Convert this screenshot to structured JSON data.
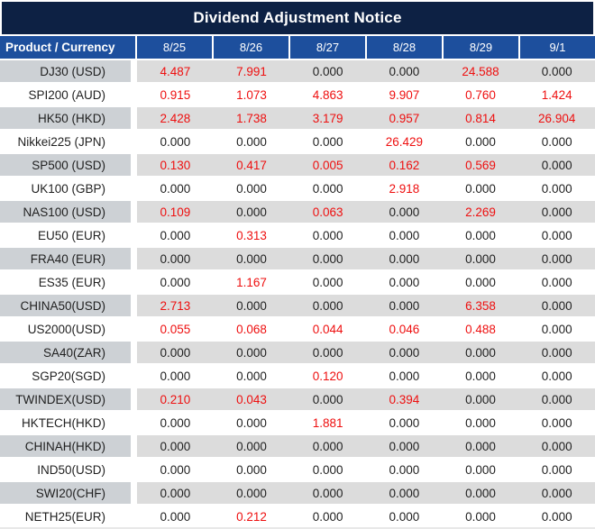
{
  "title": "Dividend Adjustment Notice",
  "chart_data": {
    "type": "table",
    "title": "Dividend Adjustment Notice",
    "columns": [
      "Product / Currency",
      "8/25",
      "8/26",
      "8/27",
      "8/28",
      "8/29",
      "9/1"
    ],
    "rows": [
      {
        "product": "DJ30 (USD)",
        "values": [
          "4.487",
          "7.991",
          "0.000",
          "0.000",
          "24.588",
          "0.000"
        ]
      },
      {
        "product": "SPI200 (AUD)",
        "values": [
          "0.915",
          "1.073",
          "4.863",
          "9.907",
          "0.760",
          "1.424"
        ]
      },
      {
        "product": "HK50 (HKD)",
        "values": [
          "2.428",
          "1.738",
          "3.179",
          "0.957",
          "0.814",
          "26.904"
        ]
      },
      {
        "product": "Nikkei225 (JPN)",
        "values": [
          "0.000",
          "0.000",
          "0.000",
          "26.429",
          "0.000",
          "0.000"
        ]
      },
      {
        "product": "SP500 (USD)",
        "values": [
          "0.130",
          "0.417",
          "0.005",
          "0.162",
          "0.569",
          "0.000"
        ]
      },
      {
        "product": "UK100 (GBP)",
        "values": [
          "0.000",
          "0.000",
          "0.000",
          "2.918",
          "0.000",
          "0.000"
        ]
      },
      {
        "product": "NAS100 (USD)",
        "values": [
          "0.109",
          "0.000",
          "0.063",
          "0.000",
          "2.269",
          "0.000"
        ]
      },
      {
        "product": "EU50 (EUR)",
        "values": [
          "0.000",
          "0.313",
          "0.000",
          "0.000",
          "0.000",
          "0.000"
        ]
      },
      {
        "product": "FRA40 (EUR)",
        "values": [
          "0.000",
          "0.000",
          "0.000",
          "0.000",
          "0.000",
          "0.000"
        ]
      },
      {
        "product": "ES35 (EUR)",
        "values": [
          "0.000",
          "1.167",
          "0.000",
          "0.000",
          "0.000",
          "0.000"
        ]
      },
      {
        "product": "CHINA50(USD)",
        "values": [
          "2.713",
          "0.000",
          "0.000",
          "0.000",
          "6.358",
          "0.000"
        ]
      },
      {
        "product": "US2000(USD)",
        "values": [
          "0.055",
          "0.068",
          "0.044",
          "0.046",
          "0.488",
          "0.000"
        ]
      },
      {
        "product": "SA40(ZAR)",
        "values": [
          "0.000",
          "0.000",
          "0.000",
          "0.000",
          "0.000",
          "0.000"
        ]
      },
      {
        "product": "SGP20(SGD)",
        "values": [
          "0.000",
          "0.000",
          "0.120",
          "0.000",
          "0.000",
          "0.000"
        ]
      },
      {
        "product": "TWINDEX(USD)",
        "values": [
          "0.210",
          "0.043",
          "0.000",
          "0.394",
          "0.000",
          "0.000"
        ]
      },
      {
        "product": "HKTECH(HKD)",
        "values": [
          "0.000",
          "0.000",
          "1.881",
          "0.000",
          "0.000",
          "0.000"
        ]
      },
      {
        "product": "CHINAH(HKD)",
        "values": [
          "0.000",
          "0.000",
          "0.000",
          "0.000",
          "0.000",
          "0.000"
        ]
      },
      {
        "product": "IND50(USD)",
        "values": [
          "0.000",
          "0.000",
          "0.000",
          "0.000",
          "0.000",
          "0.000"
        ]
      },
      {
        "product": "SWI20(CHF)",
        "values": [
          "0.000",
          "0.000",
          "0.000",
          "0.000",
          "0.000",
          "0.000"
        ]
      },
      {
        "product": "NETH25(EUR)",
        "values": [
          "0.000",
          "0.212",
          "0.000",
          "0.000",
          "0.000",
          "0.000"
        ]
      }
    ],
    "layout_hints": {
      "zebra_striping": "rows alternate gray/white starting gray",
      "value_color_rule": "non-zero values shown in red, zeros in black",
      "value_alignment": "center",
      "product_alignment": "right"
    }
  },
  "colors": {
    "navy": "#0d2144",
    "blue": "#1d4f9d",
    "zebra": "#dcdcdc",
    "productGray": "#cdd1d5",
    "red": "#ee0f0f",
    "black": "#1f1f1f",
    "strip": "#e8e8e8"
  }
}
